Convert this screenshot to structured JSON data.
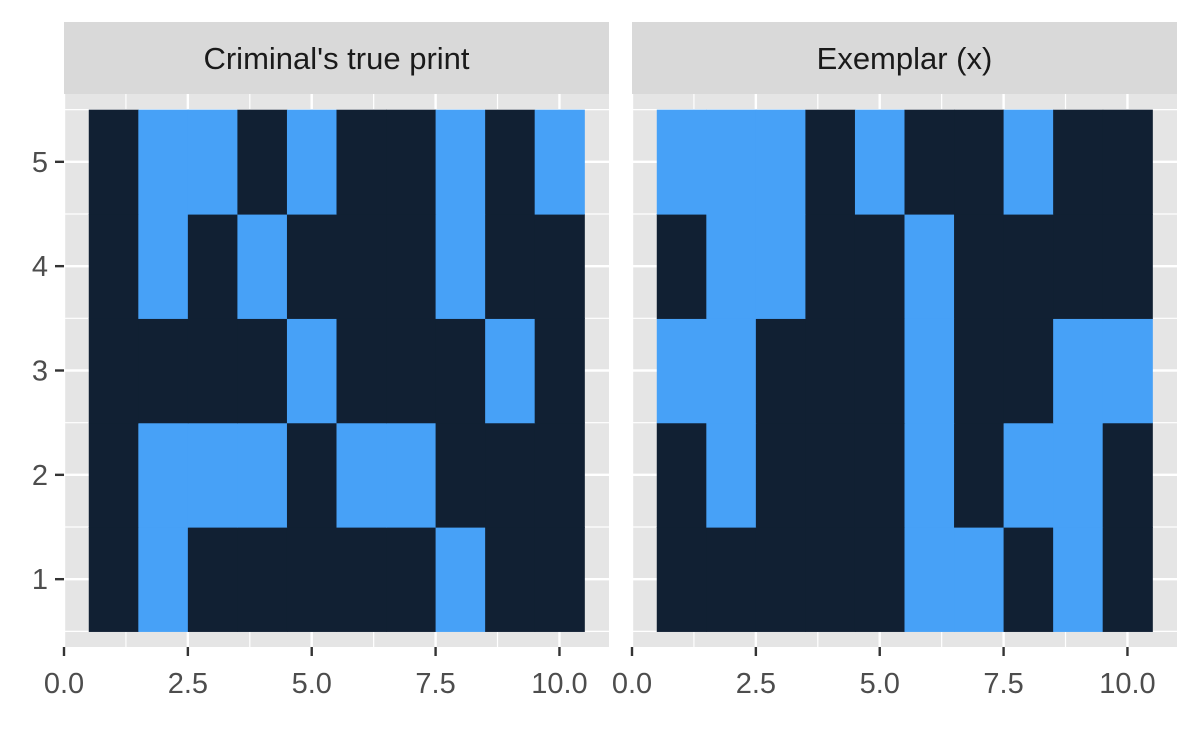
{
  "chart_data": {
    "type": "heatmap",
    "colors": {
      "panel_background": "#e5e5e5",
      "strip_background": "#d9d9d9",
      "grid_line": "#ffffff",
      "value_0": "#112033",
      "value_1": "#47a1f7",
      "tick": "#333333"
    },
    "x_ticks": [
      0,
      2.5,
      5,
      7.5,
      10
    ],
    "x_tick_labels": [
      "0.0",
      "2.5",
      "5.0",
      "7.5",
      "10.0"
    ],
    "y_ticks": [
      1,
      2,
      3,
      4,
      5
    ],
    "y_tick_labels": [
      "1",
      "2",
      "3",
      "4",
      "5"
    ],
    "xlim": [
      0,
      11
    ],
    "ylim": [
      0.35,
      5.65
    ],
    "grid": true,
    "panels": [
      {
        "title": "Criminal's true print",
        "grid_cols": 10,
        "grid_rows": 5,
        "rows": [
          [
            0,
            1,
            0,
            0,
            0,
            0,
            0,
            1,
            0,
            0
          ],
          [
            0,
            1,
            1,
            1,
            0,
            1,
            1,
            0,
            0,
            0
          ],
          [
            0,
            0,
            0,
            0,
            1,
            0,
            0,
            0,
            1,
            0
          ],
          [
            0,
            1,
            0,
            1,
            0,
            0,
            0,
            1,
            0,
            0
          ],
          [
            0,
            1,
            1,
            0,
            1,
            0,
            0,
            1,
            0,
            1
          ]
        ]
      },
      {
        "title": "Exemplar (x)",
        "grid_cols": 10,
        "grid_rows": 5,
        "rows": [
          [
            0,
            0,
            0,
            0,
            0,
            1,
            1,
            0,
            1,
            0
          ],
          [
            0,
            1,
            0,
            0,
            0,
            1,
            0,
            1,
            1,
            0
          ],
          [
            1,
            1,
            0,
            0,
            0,
            1,
            0,
            0,
            1,
            1
          ],
          [
            0,
            1,
            1,
            0,
            0,
            1,
            0,
            0,
            0,
            0
          ],
          [
            1,
            1,
            1,
            0,
            1,
            0,
            0,
            1,
            0,
            0
          ]
        ]
      }
    ]
  }
}
